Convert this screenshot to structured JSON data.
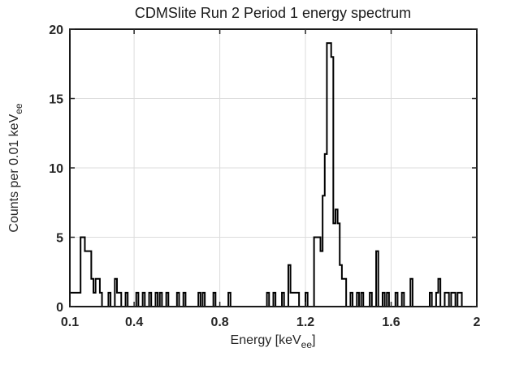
{
  "figure": {
    "title": "CDMSlite Run 2 Period 1 energy spectrum"
  },
  "axes": {
    "xlabel": {
      "main": "Energy [keV",
      "sub": "ee",
      "end": "]"
    },
    "ylabel": {
      "main": "Counts per 0.01 keV",
      "sub": "ee"
    }
  },
  "chart_data": {
    "type": "bar",
    "style": "stairs-histogram-outline",
    "title": "CDMSlite Run 2 Period 1 energy spectrum",
    "xlabel": "Energy [keV_ee]",
    "ylabel": "Counts per 0.01 keV_ee",
    "xlim": [
      0.1,
      2
    ],
    "ylim": [
      0,
      20
    ],
    "bin_width": 0.01,
    "grid": true,
    "x_ticks": [
      {
        "v": 0.1,
        "label": "0.1"
      },
      {
        "v": 0.4,
        "label": "0.4"
      },
      {
        "v": 0.8,
        "label": "0.8"
      },
      {
        "v": 1.2,
        "label": "1.2"
      },
      {
        "v": 1.6,
        "label": "1.6"
      },
      {
        "v": 2,
        "label": "2"
      }
    ],
    "y_ticks": [
      {
        "v": 0,
        "label": "0"
      },
      {
        "v": 5,
        "label": "5"
      },
      {
        "v": 10,
        "label": "10"
      },
      {
        "v": 15,
        "label": "15"
      },
      {
        "v": 20,
        "label": "20"
      }
    ],
    "bins_note": "nonzero bins only, [bin_left_edge_keVee, counts]; all other 0.01-wide bins are 0",
    "bins": [
      [
        0.1,
        1
      ],
      [
        0.11,
        1
      ],
      [
        0.12,
        1
      ],
      [
        0.13,
        1
      ],
      [
        0.14,
        1
      ],
      [
        0.15,
        5
      ],
      [
        0.16,
        5
      ],
      [
        0.17,
        4
      ],
      [
        0.18,
        4
      ],
      [
        0.19,
        4
      ],
      [
        0.2,
        2
      ],
      [
        0.21,
        1
      ],
      [
        0.22,
        2
      ],
      [
        0.23,
        2
      ],
      [
        0.24,
        1
      ],
      [
        0.28,
        1
      ],
      [
        0.31,
        2
      ],
      [
        0.32,
        1
      ],
      [
        0.33,
        1
      ],
      [
        0.36,
        1
      ],
      [
        0.41,
        1
      ],
      [
        0.44,
        1
      ],
      [
        0.47,
        1
      ],
      [
        0.5,
        1
      ],
      [
        0.52,
        1
      ],
      [
        0.55,
        1
      ],
      [
        0.6,
        1
      ],
      [
        0.63,
        1
      ],
      [
        0.7,
        1
      ],
      [
        0.72,
        1
      ],
      [
        0.77,
        1
      ],
      [
        0.84,
        1
      ],
      [
        1.02,
        1
      ],
      [
        1.05,
        1
      ],
      [
        1.09,
        1
      ],
      [
        1.12,
        3
      ],
      [
        1.13,
        1
      ],
      [
        1.14,
        1
      ],
      [
        1.15,
        1
      ],
      [
        1.16,
        1
      ],
      [
        1.2,
        1
      ],
      [
        1.24,
        5
      ],
      [
        1.25,
        5
      ],
      [
        1.26,
        5
      ],
      [
        1.27,
        4
      ],
      [
        1.28,
        8
      ],
      [
        1.29,
        11
      ],
      [
        1.3,
        19
      ],
      [
        1.31,
        19
      ],
      [
        1.32,
        18
      ],
      [
        1.33,
        6
      ],
      [
        1.34,
        7
      ],
      [
        1.35,
        6
      ],
      [
        1.36,
        3
      ],
      [
        1.37,
        2
      ],
      [
        1.38,
        2
      ],
      [
        1.41,
        1
      ],
      [
        1.44,
        1
      ],
      [
        1.46,
        1
      ],
      [
        1.5,
        1
      ],
      [
        1.53,
        4
      ],
      [
        1.56,
        1
      ],
      [
        1.58,
        1
      ],
      [
        1.62,
        1
      ],
      [
        1.65,
        1
      ],
      [
        1.69,
        2
      ],
      [
        1.78,
        1
      ],
      [
        1.81,
        1
      ],
      [
        1.82,
        2
      ],
      [
        1.85,
        1
      ],
      [
        1.86,
        1
      ],
      [
        1.88,
        1
      ],
      [
        1.89,
        1
      ],
      [
        1.91,
        1
      ],
      [
        1.92,
        1
      ]
    ],
    "colors": {
      "line": "#000000",
      "axis_box": "#1a1a1a",
      "grid": "#dcdcdc",
      "tick": "#262626",
      "text": "#262626",
      "background": "#ffffff"
    }
  }
}
